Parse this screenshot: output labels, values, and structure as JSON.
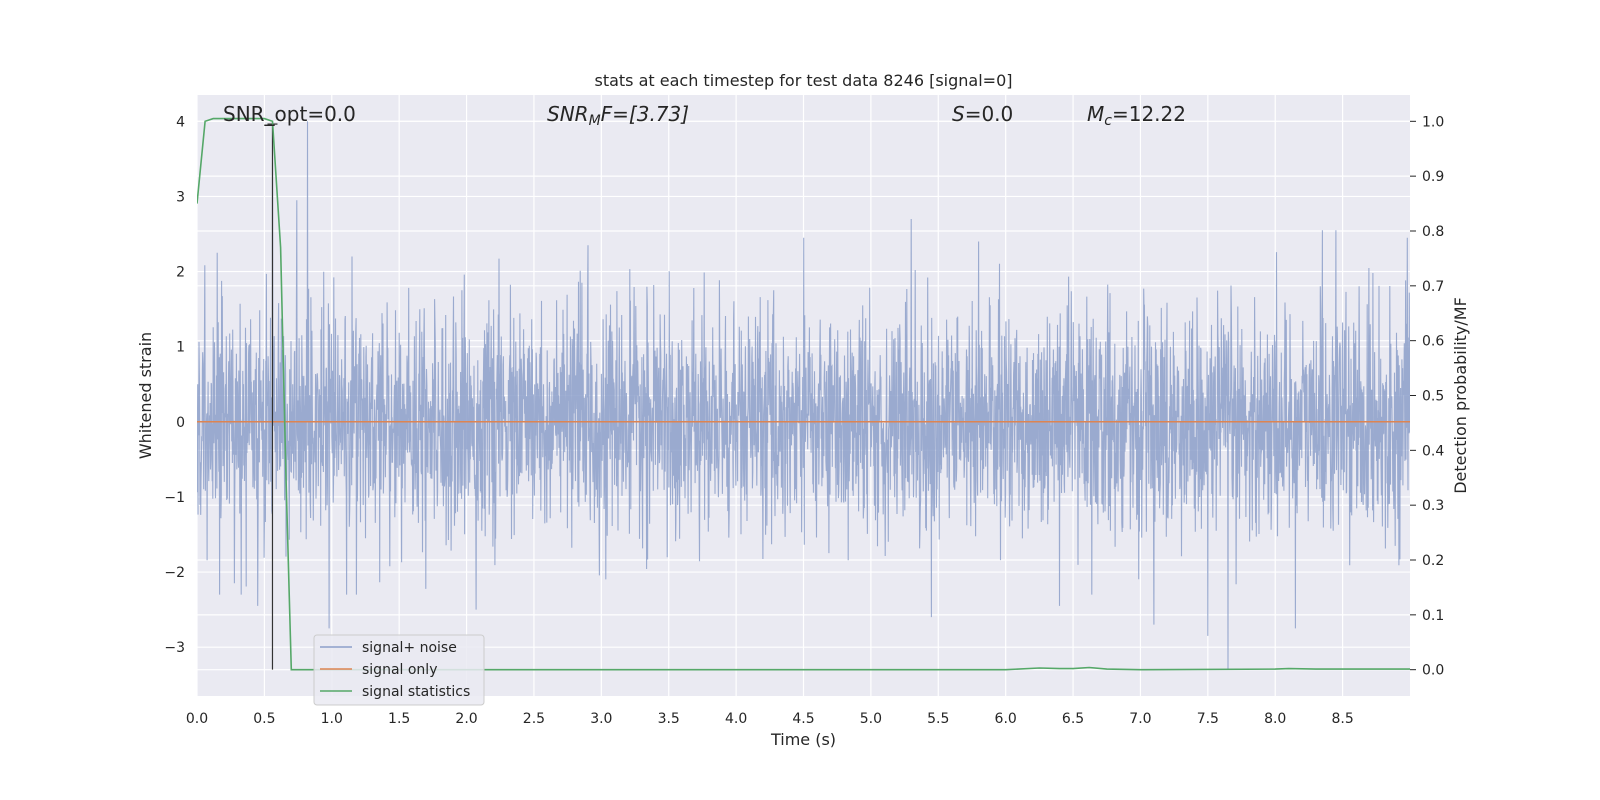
{
  "chart_data": {
    "type": "line",
    "title": "stats at each timestep for test data 8246 [signal=0]",
    "xlabel": "Time (s)",
    "ylabel_left": "Whitened strain",
    "ylabel_right": "Detection probability/MF",
    "xlim": [
      0.0,
      9.0
    ],
    "ylim_left": [
      -3.65,
      4.35
    ],
    "ylim_right": [
      -0.048,
      1.048
    ],
    "x_ticks": [
      "0.0",
      "0.5",
      "1.0",
      "1.5",
      "2.0",
      "2.5",
      "3.0",
      "3.5",
      "4.0",
      "4.5",
      "5.0",
      "5.5",
      "6.0",
      "6.5",
      "7.0",
      "7.5",
      "8.0",
      "8.5"
    ],
    "y_left_ticks": [
      "4",
      "3",
      "2",
      "1",
      "0",
      "−1",
      "−2",
      "−3"
    ],
    "y_right_ticks": [
      "1.0",
      "0.9",
      "0.8",
      "0.7",
      "0.6",
      "0.5",
      "0.4",
      "0.3",
      "0.2",
      "0.1",
      "0.0"
    ],
    "grid": true,
    "annotations": {
      "snr_opt": "SNR_opt=0.0",
      "snr_mf_name": "SNR",
      "snr_mf_sub": "M",
      "snr_mf_rest": "F=[3.73]",
      "s_name": "S",
      "s_rest": "=0.0",
      "mc_name": "M",
      "mc_sub": "c",
      "mc_rest": "=12.22"
    },
    "marker_line": {
      "x": 0.56,
      "y_top_right": 0.995,
      "y_bottom_right": 0.0
    },
    "legend": {
      "position": "lower-left",
      "entries": [
        "signal+ noise",
        "signal only",
        "signal statistics"
      ]
    },
    "series": [
      {
        "name": "signal+ noise",
        "color": "#8c9fc9",
        "axis": "left",
        "description_values": {
          "typical_abs_max": 1.7,
          "peak_max": 4.0,
          "peak_min": -3.3
        },
        "spikes": [
          {
            "x": 0.82,
            "y": 4.0
          },
          {
            "x": 0.56,
            "y": 3.45
          },
          {
            "x": 0.74,
            "y": 2.95
          },
          {
            "x": 2.9,
            "y": 2.35
          },
          {
            "x": 5.3,
            "y": 2.7
          },
          {
            "x": 5.8,
            "y": 2.4
          },
          {
            "x": 8.45,
            "y": 2.55
          },
          {
            "x": 8.35,
            "y": 2.55
          },
          {
            "x": 8.98,
            "y": 2.45
          },
          {
            "x": 4.5,
            "y": 2.45
          },
          {
            "x": 0.15,
            "y": 2.25
          },
          {
            "x": 1.15,
            "y": 2.2
          },
          {
            "x": 7.65,
            "y": -3.3
          },
          {
            "x": 7.5,
            "y": -2.85
          },
          {
            "x": 0.98,
            "y": -2.75
          },
          {
            "x": 8.15,
            "y": -2.75
          },
          {
            "x": 7.1,
            "y": -2.7
          },
          {
            "x": 0.45,
            "y": -2.45
          },
          {
            "x": 2.07,
            "y": -2.5
          },
          {
            "x": 5.45,
            "y": -2.6
          },
          {
            "x": 6.4,
            "y": -2.45
          }
        ]
      },
      {
        "name": "signal only",
        "color": "#dd8452",
        "axis": "left",
        "x": [
          0.0,
          9.0
        ],
        "y": [
          0.0,
          0.0
        ]
      },
      {
        "name": "signal statistics",
        "color": "#55a868",
        "axis": "right",
        "x": [
          0.0,
          0.06,
          0.12,
          0.2,
          0.3,
          0.4,
          0.5,
          0.56,
          0.62,
          0.66,
          0.7,
          1.0,
          2.0,
          3.0,
          4.0,
          5.0,
          6.0,
          6.25,
          6.4,
          6.5,
          6.62,
          6.75,
          7.0,
          8.0,
          8.1,
          8.3,
          9.0
        ],
        "y": [
          0.85,
          1.0,
          1.005,
          1.005,
          1.005,
          1.005,
          1.005,
          1.0,
          0.77,
          0.35,
          0.0,
          0.0,
          0.0,
          0.0,
          0.0,
          0.0,
          0.0,
          0.003,
          0.002,
          0.002,
          0.004,
          0.001,
          0.0,
          0.001,
          0.002,
          0.001,
          0.001
        ]
      }
    ]
  }
}
